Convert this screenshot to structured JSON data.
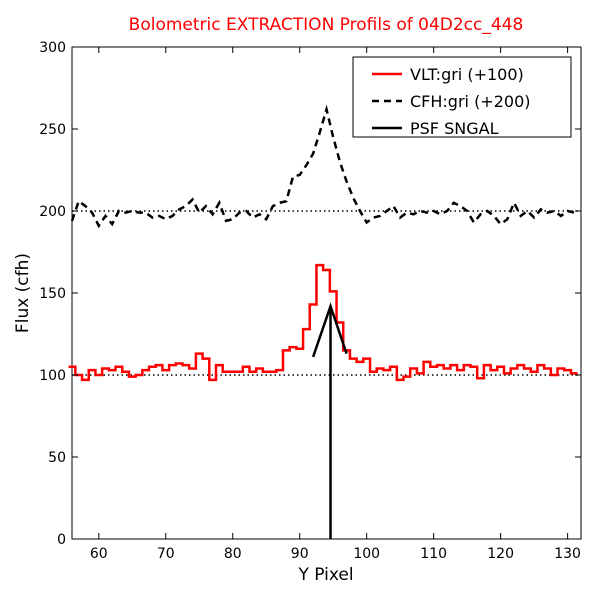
{
  "chart_data": {
    "type": "line",
    "title": "Bolometric EXTRACTION Profils of 04D2cc_448",
    "title_color": "#ff0000",
    "xlabel": "Y Pixel",
    "ylabel": "Flux (cfh)",
    "xlim": [
      56,
      132
    ],
    "ylim": [
      0,
      300
    ],
    "xticks": [
      60,
      70,
      80,
      90,
      100,
      110,
      120,
      130
    ],
    "yticks": [
      0,
      50,
      100,
      150,
      200,
      250,
      300
    ],
    "grid": false,
    "legend_position": "top-right",
    "reference_lines": [
      {
        "y": 100,
        "style": "dotted",
        "color": "#000000"
      },
      {
        "y": 200,
        "style": "dotted",
        "color": "#000000"
      }
    ],
    "series": [
      {
        "name": "VLT:gri (+100)",
        "color": "#ff0000",
        "style": "steps",
        "x": [
          56,
          57,
          58,
          59,
          60,
          61,
          62,
          63,
          64,
          65,
          66,
          67,
          68,
          69,
          70,
          71,
          72,
          73,
          74,
          75,
          76,
          77,
          78,
          79,
          80,
          81,
          82,
          83,
          84,
          85,
          86,
          87,
          88,
          89,
          90,
          91,
          92,
          93,
          94,
          95,
          96,
          97,
          98,
          99,
          100,
          101,
          102,
          103,
          104,
          105,
          106,
          107,
          108,
          109,
          110,
          111,
          112,
          113,
          114,
          115,
          116,
          117,
          118,
          119,
          120,
          121,
          122,
          123,
          124,
          125,
          126,
          127,
          128,
          129,
          130,
          131
        ],
        "y": [
          105,
          100,
          97,
          103,
          100,
          104,
          103,
          105,
          102,
          99,
          100,
          103,
          105,
          106,
          103,
          106,
          107,
          106,
          104,
          113,
          110,
          97,
          106,
          102,
          102,
          102,
          105,
          102,
          104,
          102,
          102,
          103,
          115,
          117,
          116,
          128,
          143,
          167,
          164,
          151,
          132,
          115,
          110,
          108,
          110,
          102,
          104,
          103,
          105,
          97,
          99,
          104,
          101,
          108,
          105,
          106,
          104,
          106,
          103,
          106,
          105,
          98,
          106,
          103,
          105,
          101,
          104,
          106,
          104,
          102,
          106,
          104,
          100,
          104,
          103,
          101
        ],
        "y_offset_label": "+100"
      },
      {
        "name": "CFH:gri (+200)",
        "color": "#000000",
        "style": "dashed",
        "x": [
          56,
          57,
          58,
          59,
          60,
          61,
          62,
          63,
          64,
          65,
          66,
          67,
          68,
          69,
          70,
          71,
          72,
          73,
          74,
          75,
          76,
          77,
          78,
          79,
          80,
          81,
          82,
          83,
          84,
          85,
          86,
          87,
          88,
          89,
          90,
          91,
          92,
          93,
          94,
          95,
          96,
          97,
          98,
          99,
          100,
          101,
          102,
          103,
          104,
          105,
          106,
          107,
          108,
          109,
          110,
          111,
          112,
          113,
          114,
          115,
          116,
          117,
          118,
          119,
          120,
          121,
          122,
          123,
          124,
          125,
          126,
          127,
          128,
          129,
          130,
          131
        ],
        "y": [
          194,
          206,
          203,
          199,
          191,
          197,
          192,
          200,
          199,
          200,
          199,
          199,
          196,
          197,
          195,
          197,
          201,
          203,
          207,
          199,
          203,
          198,
          205,
          194,
          195,
          199,
          200,
          196,
          198,
          195,
          203,
          205,
          206,
          221,
          222,
          228,
          235,
          248,
          262,
          245,
          230,
          218,
          208,
          200,
          193,
          196,
          197,
          200,
          203,
          196,
          199,
          198,
          200,
          199,
          200,
          198,
          200,
          205,
          203,
          200,
          193,
          198,
          200,
          197,
          192,
          195,
          205,
          197,
          200,
          196,
          201,
          199,
          200,
          197,
          200,
          199
        ]
      },
      {
        "name": "PSF SNGAL",
        "color": "#000000",
        "style": "solid",
        "x": [
          92,
          94.6,
          97
        ],
        "y": [
          111,
          142,
          113
        ],
        "vertical_marker": {
          "x": 94.6,
          "y0": 0,
          "y1": 142
        }
      }
    ]
  }
}
